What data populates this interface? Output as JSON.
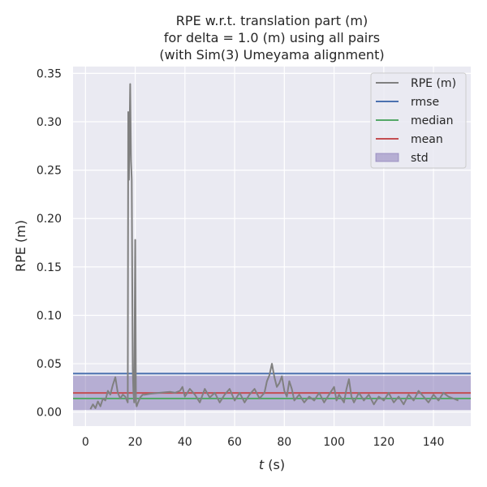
{
  "chart_data": {
    "type": "line",
    "title_lines": [
      "RPE w.r.t. translation part (m)",
      "for delta = 1.0 (m) using all pairs",
      "(with Sim(3) Umeyama alignment)"
    ],
    "xlabel_var": "t",
    "xlabel_unit": " (s)",
    "ylabel": "RPE (m)",
    "xlim": [
      -5,
      155
    ],
    "ylim": [
      -0.0145,
      0.357
    ],
    "x_ticks": [
      0,
      20,
      40,
      60,
      80,
      100,
      120,
      140
    ],
    "y_ticks": [
      0.0,
      0.05,
      0.1,
      0.15,
      0.2,
      0.25,
      0.3,
      0.35
    ],
    "grid": true,
    "legend_position": "top-right",
    "series": [
      {
        "name": "RPE (m)",
        "color": "#808080",
        "x": [
          2.0,
          3.0,
          4.0,
          5.0,
          6.0,
          7.0,
          8.0,
          9.0,
          10.0,
          11.0,
          12.0,
          13.0,
          14.0,
          15.0,
          16.0,
          17.0,
          17.2,
          17.5,
          17.8,
          18.0,
          18.3,
          18.6,
          19.0,
          19.3,
          19.6,
          20.0,
          20.3,
          20.6,
          21.0,
          22.0,
          23.0,
          24.0,
          26.0,
          30.0,
          34.0,
          36.0,
          38.0,
          39.0,
          40.0,
          42.0,
          44.0,
          46.0,
          48.0,
          50.0,
          52.0,
          54.0,
          56.0,
          58.0,
          60.0,
          62.0,
          64.0,
          66.0,
          68.0,
          70.0,
          72.0,
          73.0,
          74.0,
          75.0,
          76.0,
          77.0,
          78.0,
          79.0,
          80.0,
          81.0,
          82.0,
          83.0,
          84.0,
          86.0,
          88.0,
          90.0,
          92.0,
          94.0,
          96.0,
          98.0,
          100.0,
          101.0,
          102.0,
          104.0,
          105.0,
          106.0,
          107.0,
          108.0,
          110.0,
          112.0,
          114.0,
          116.0,
          118.0,
          120.0,
          122.0,
          124.0,
          126.0,
          128.0,
          130.0,
          132.0,
          134.0,
          136.0,
          138.0,
          140.0,
          142.0,
          144.0,
          146.0,
          148.0,
          150.0
        ],
        "y": [
          0.003,
          0.008,
          0.004,
          0.011,
          0.006,
          0.014,
          0.012,
          0.022,
          0.018,
          0.028,
          0.036,
          0.02,
          0.014,
          0.018,
          0.016,
          0.01,
          0.31,
          0.24,
          0.3,
          0.339,
          0.26,
          0.24,
          0.045,
          0.02,
          0.01,
          0.178,
          0.01,
          0.006,
          0.009,
          0.015,
          0.018,
          0.018,
          0.019,
          0.02,
          0.021,
          0.02,
          0.022,
          0.026,
          0.016,
          0.024,
          0.018,
          0.01,
          0.024,
          0.015,
          0.02,
          0.01,
          0.018,
          0.024,
          0.012,
          0.02,
          0.01,
          0.018,
          0.024,
          0.014,
          0.02,
          0.032,
          0.038,
          0.05,
          0.036,
          0.026,
          0.03,
          0.037,
          0.022,
          0.016,
          0.032,
          0.024,
          0.012,
          0.018,
          0.01,
          0.016,
          0.012,
          0.02,
          0.01,
          0.018,
          0.026,
          0.012,
          0.018,
          0.01,
          0.024,
          0.034,
          0.016,
          0.01,
          0.02,
          0.012,
          0.018,
          0.008,
          0.016,
          0.012,
          0.02,
          0.01,
          0.016,
          0.008,
          0.018,
          0.012,
          0.022,
          0.016,
          0.01,
          0.018,
          0.012,
          0.02,
          0.016,
          0.014,
          0.012
        ]
      },
      {
        "name": "rmse",
        "color": "#4c72b0",
        "value": 0.0398
      },
      {
        "name": "median",
        "color": "#55a868",
        "value": 0.014
      },
      {
        "name": "mean",
        "color": "#c44e52",
        "value": 0.0198
      },
      {
        "name": "std",
        "color": "#8172b3",
        "range": [
          0.0022,
          0.0374
        ]
      }
    ]
  }
}
